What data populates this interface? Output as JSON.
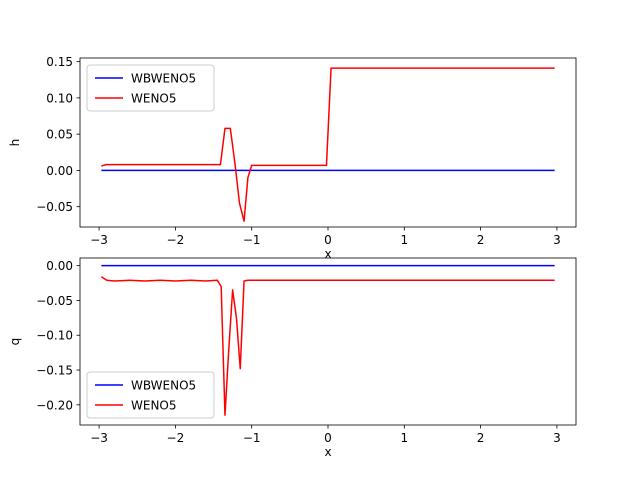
{
  "chart_data": [
    {
      "type": "line",
      "xlabel": "x",
      "ylabel": "h",
      "xlim": [
        -3.25,
        3.25
      ],
      "ylim": [
        -0.078,
        0.155
      ],
      "xticks": [
        -3,
        -2,
        -1,
        0,
        1,
        2,
        3
      ],
      "xtick_labels": [
        "−3",
        "−2",
        "−1",
        "0",
        "1",
        "2",
        "3"
      ],
      "yticks": [
        0.15,
        0.1,
        0.05,
        0.0,
        -0.05
      ],
      "ytick_labels": [
        "0.15",
        "0.10",
        "0.05",
        "0.00",
        "−0.05"
      ],
      "grid": false,
      "legend_position": "upper-left",
      "series": [
        {
          "name": "WBWENO5",
          "color": "#0000ff",
          "x": [
            -2.97,
            2.97
          ],
          "y": [
            0.0,
            0.0
          ]
        },
        {
          "name": "WENO5",
          "color": "#ff0000",
          "x": [
            -2.97,
            -2.91,
            -2.85,
            -2.7,
            -2.5,
            -2.3,
            -2.1,
            -1.9,
            -1.7,
            -1.5,
            -1.41,
            -1.35,
            -1.28,
            -1.22,
            -1.16,
            -1.1,
            -1.05,
            -1.0,
            -0.8,
            -0.6,
            -0.4,
            -0.2,
            -0.02,
            0.04,
            0.2,
            0.5,
            1.0,
            1.5,
            2.0,
            2.5,
            2.97
          ],
          "y": [
            0.006,
            0.008,
            0.008,
            0.008,
            0.008,
            0.008,
            0.008,
            0.008,
            0.008,
            0.008,
            0.008,
            0.058,
            0.058,
            0.01,
            -0.045,
            -0.07,
            -0.01,
            0.007,
            0.007,
            0.007,
            0.007,
            0.007,
            0.007,
            0.141,
            0.141,
            0.141,
            0.141,
            0.141,
            0.141,
            0.141,
            0.141
          ]
        }
      ]
    },
    {
      "type": "line",
      "xlabel": "x",
      "ylabel": "q",
      "xlim": [
        -3.25,
        3.25
      ],
      "ylim": [
        -0.229,
        0.011
      ],
      "xticks": [
        -3,
        -2,
        -1,
        0,
        1,
        2,
        3
      ],
      "xtick_labels": [
        "−3",
        "−2",
        "−1",
        "0",
        "1",
        "2",
        "3"
      ],
      "yticks": [
        0.0,
        -0.05,
        -0.1,
        -0.15,
        -0.2
      ],
      "ytick_labels": [
        "0.00",
        "−0.05",
        "−0.10",
        "−0.15",
        "−0.20"
      ],
      "grid": false,
      "legend_position": "lower-left",
      "series": [
        {
          "name": "WBWENO5",
          "color": "#0000ff",
          "x": [
            -2.97,
            2.97
          ],
          "y": [
            0.0,
            0.0
          ]
        },
        {
          "name": "WENO5",
          "color": "#ff0000",
          "x": [
            -2.97,
            -2.9,
            -2.8,
            -2.6,
            -2.4,
            -2.2,
            -2.0,
            -1.8,
            -1.6,
            -1.45,
            -1.4,
            -1.35,
            -1.3,
            -1.25,
            -1.2,
            -1.15,
            -1.1,
            -1.05,
            -1.0,
            -0.5,
            0.0,
            0.5,
            1.0,
            1.5,
            2.0,
            2.5,
            2.97
          ],
          "y": [
            -0.016,
            -0.021,
            -0.022,
            -0.021,
            -0.022,
            -0.021,
            -0.022,
            -0.021,
            -0.022,
            -0.021,
            -0.03,
            -0.215,
            -0.12,
            -0.035,
            -0.075,
            -0.148,
            -0.022,
            -0.021,
            -0.021,
            -0.021,
            -0.021,
            -0.021,
            -0.021,
            -0.021,
            -0.021,
            -0.021,
            -0.021
          ]
        }
      ]
    }
  ]
}
